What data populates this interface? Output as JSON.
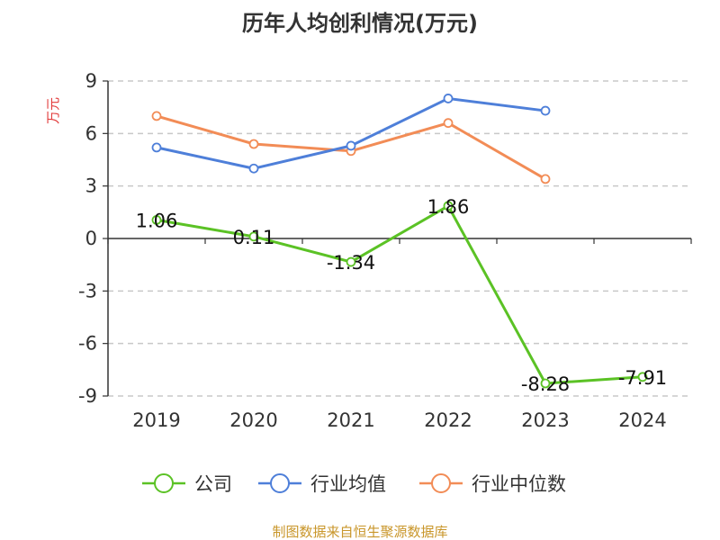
{
  "chart_data": {
    "type": "line",
    "title": "历年人均创利情况(万元)",
    "ylabel": "万元",
    "categories": [
      "2019",
      "2020",
      "2021",
      "2022",
      "2023",
      "2024"
    ],
    "yticks": [
      "9",
      "6",
      "3",
      "0",
      "-3",
      "-6",
      "-9"
    ],
    "ylim": [
      -9,
      9
    ],
    "grid": true,
    "legend_position": "bottom",
    "series": [
      {
        "name": "公司",
        "color": "#5bc225",
        "values": [
          1.06,
          0.11,
          -1.34,
          1.86,
          -8.28,
          -7.91
        ],
        "labels": [
          "1.06",
          "0.11",
          "-1.34",
          "1.86",
          "-8.28",
          "-7.91"
        ]
      },
      {
        "name": "行业均值",
        "color": "#4e7fd9",
        "values": [
          5.2,
          4.0,
          5.3,
          8.0,
          7.3,
          null
        ]
      },
      {
        "name": "行业中位数",
        "color": "#f28c56",
        "values": [
          7.0,
          5.4,
          5.0,
          6.6,
          3.4,
          null
        ]
      }
    ]
  },
  "source": "制图数据来自恒生聚源数据库"
}
